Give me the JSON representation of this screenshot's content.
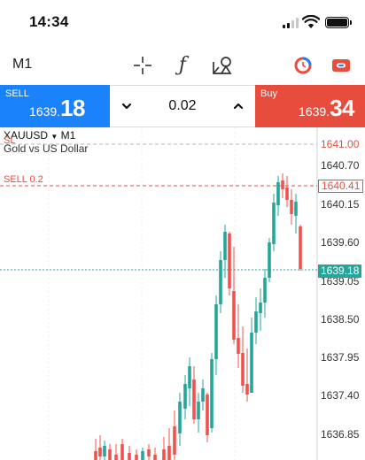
{
  "status_bar": {
    "time": "14:34"
  },
  "toolbar": {
    "timeframe": "M1",
    "icons": [
      "crosshair-icon",
      "indicators-icon",
      "objects-icon",
      "order-icon",
      "account-icon"
    ]
  },
  "trade": {
    "sell_label": "SELL",
    "sell_price_prefix": "1639.",
    "sell_price_big": "18",
    "buy_label": "Buy",
    "buy_price_prefix": "1639.",
    "buy_price_big": "34",
    "volume": "0.02"
  },
  "chart": {
    "symbol": "XAUUSD",
    "timeframe": "M1",
    "description": "Gold vs US Dollar",
    "sl_label": "SL",
    "sell_order_label": "SELL 0.2",
    "sl_price": "1641.00",
    "order_price": "1640.41",
    "bid_price": "1639.18",
    "axis_ticks": [
      "1640.70",
      "1640.15",
      "1639.60",
      "1639.05",
      "1638.50",
      "1637.95",
      "1637.40",
      "1636.85"
    ],
    "colors": {
      "up": "#26a69a",
      "down": "#ef5350",
      "bid_line": "#26a69a",
      "order_line": "#e74c3c"
    }
  }
}
